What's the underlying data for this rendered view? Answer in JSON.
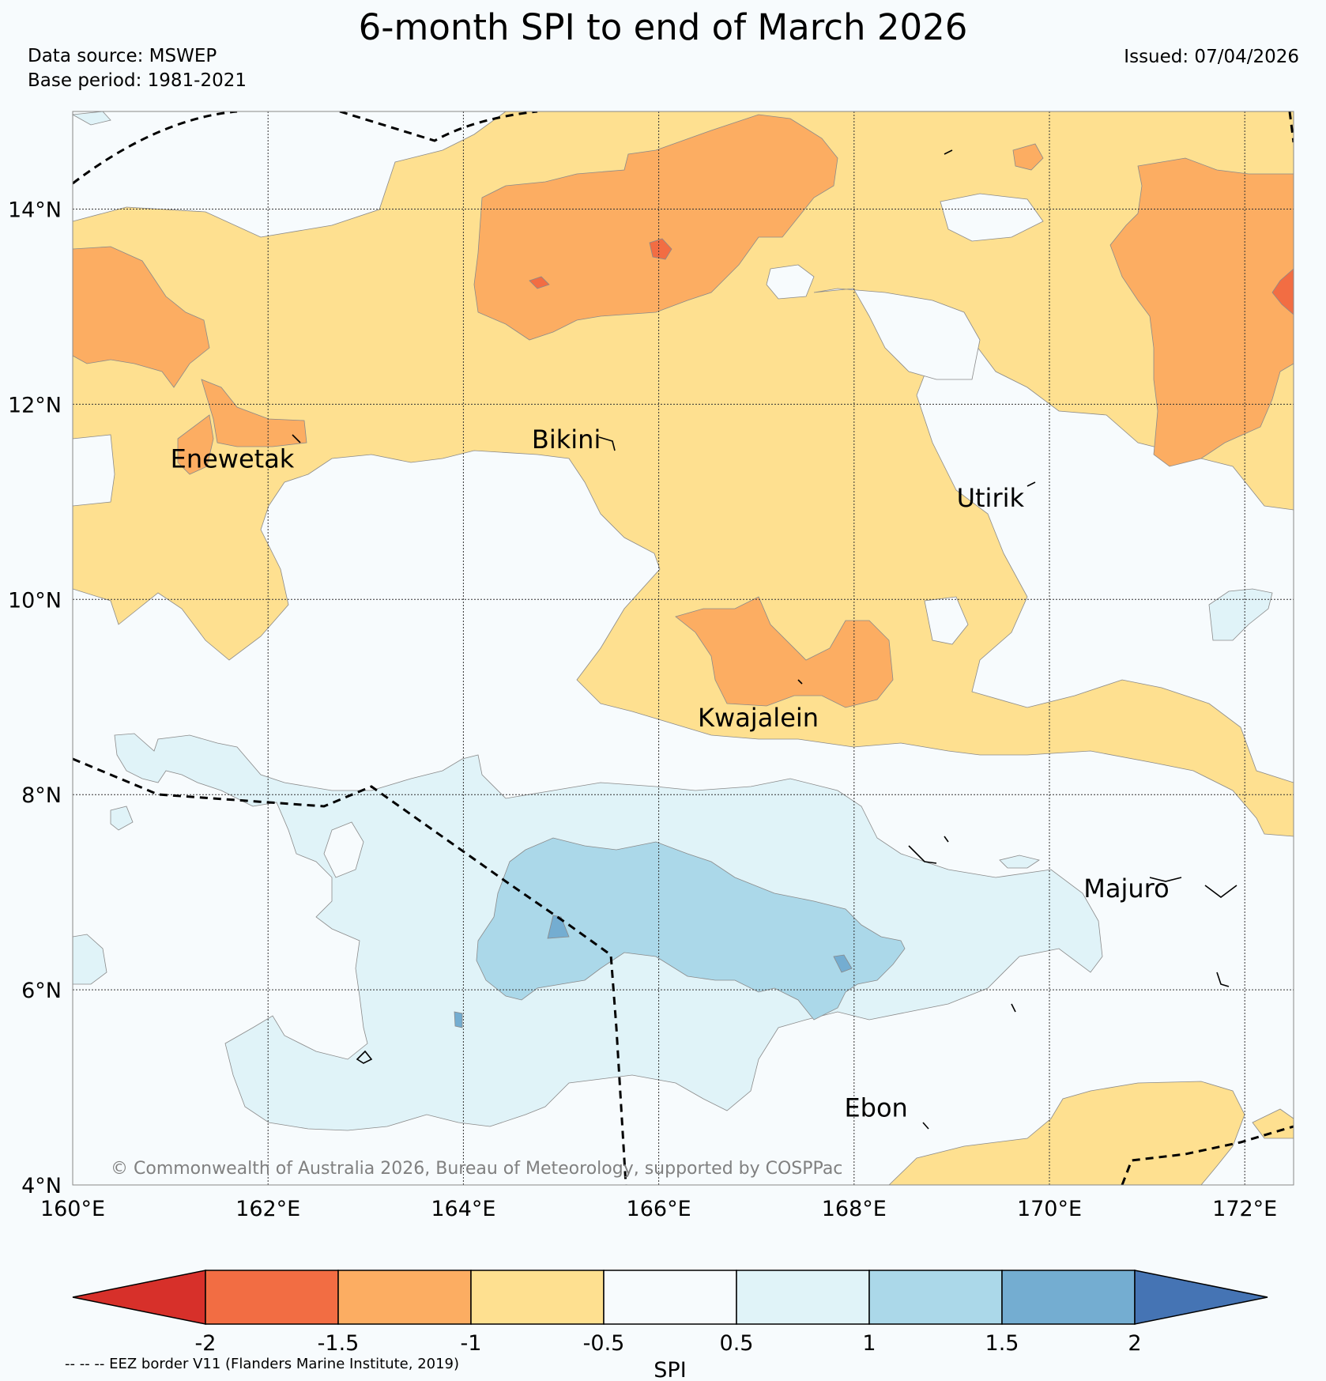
{
  "title": "6-month SPI to end of March 2026",
  "data_source": "Data source: MSWEP",
  "base_period": "Base period: 1981-2021",
  "issued": "Issued: 07/04/2026",
  "copyright": "© Commonwealth of Australia 2026, Bureau of Meteorology, supported by COSPPac",
  "eez_note": "-- -- -- EEZ border V11 (Flanders Marine Institute, 2019)",
  "map": {
    "lon_range": [
      160,
      172.5
    ],
    "lat_range": [
      4,
      15
    ],
    "lon_ticks": [
      {
        "value": 160,
        "label": "160°E"
      },
      {
        "value": 162,
        "label": "162°E"
      },
      {
        "value": 164,
        "label": "164°E"
      },
      {
        "value": 166,
        "label": "166°E"
      },
      {
        "value": 168,
        "label": "168°E"
      },
      {
        "value": 170,
        "label": "170°E"
      },
      {
        "value": 172,
        "label": "172°E"
      }
    ],
    "lat_ticks": [
      {
        "value": 4,
        "label": "4°N"
      },
      {
        "value": 6,
        "label": "6°N"
      },
      {
        "value": 8,
        "label": "8°N"
      },
      {
        "value": 10,
        "label": "10°N"
      },
      {
        "value": 12,
        "label": "12°N"
      },
      {
        "value": 14,
        "label": "14°N"
      }
    ],
    "places": [
      {
        "name": "Enewetak",
        "lon": 161.0,
        "lat": 11.35
      },
      {
        "name": "Bikini",
        "lon": 164.7,
        "lat": 11.55
      },
      {
        "name": "Utirik",
        "lon": 169.05,
        "lat": 10.95
      },
      {
        "name": "Kwajalein",
        "lon": 166.4,
        "lat": 8.7
      },
      {
        "name": "Majuro",
        "lon": 170.35,
        "lat": 6.95
      },
      {
        "name": "Ebon",
        "lon": 167.9,
        "lat": 4.7
      }
    ]
  },
  "legend": {
    "label": "SPI",
    "ticks": [
      "-2",
      "-1.5",
      "-1",
      "-0.5",
      "0.5",
      "1",
      "1.5",
      "2"
    ],
    "colors": {
      "below_-2": "#d7302a",
      "-2_to_-1.5": "#f26d43",
      "-1.5_to_-1": "#fcad62",
      "-1_to_-0.5": "#fee090",
      "-0.5_to_0.5": "#f7fbfd",
      "0.5_to_1": "#e0f3f8",
      "1_to_1.5": "#abd8e9",
      "1.5_to_2": "#74add1",
      "above_2": "#4574b4"
    }
  }
}
